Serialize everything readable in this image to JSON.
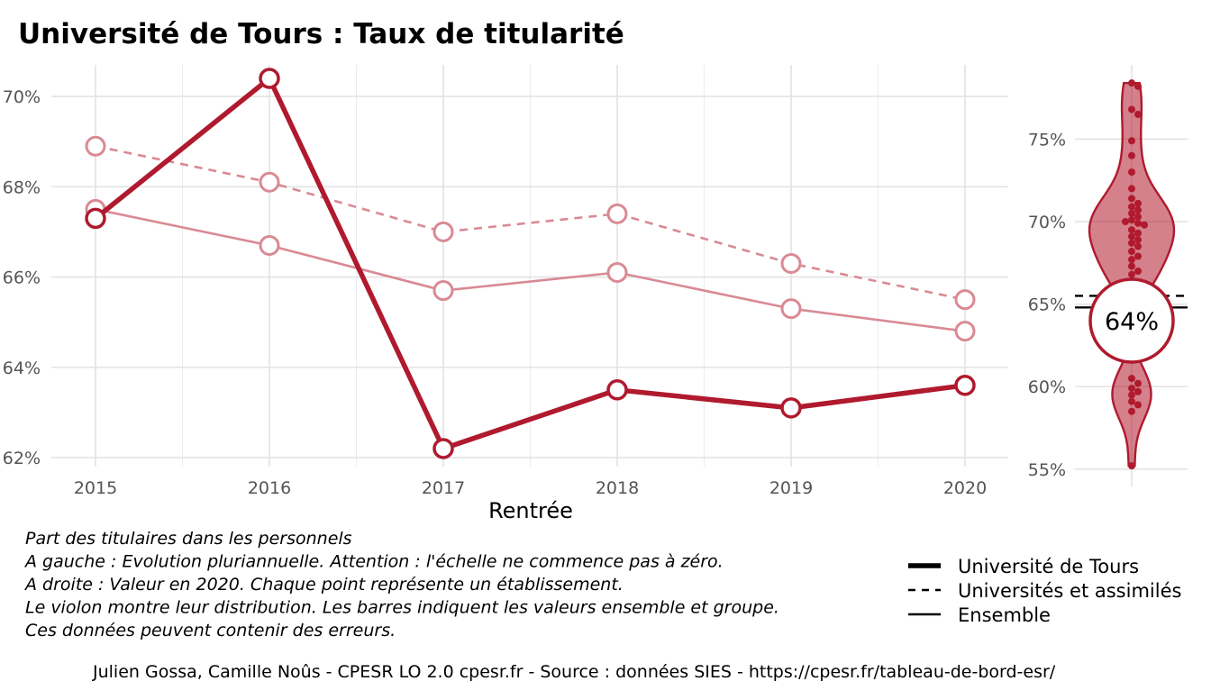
{
  "title": "Université de Tours  :  Taux de titularité",
  "chart_data": [
    {
      "type": "line",
      "xlabel": "Rentrée",
      "ylabel": "",
      "categories": [
        "2015",
        "2016",
        "2017",
        "2018",
        "2019",
        "2020"
      ],
      "ylim": [
        61.8,
        70.7
      ],
      "yticks": [
        "62%",
        "64%",
        "66%",
        "68%",
        "70%"
      ],
      "ytick_values": [
        62,
        64,
        66,
        68,
        70
      ],
      "grid": true,
      "series": [
        {
          "name": "Université de Tours",
          "style": "solid-thick",
          "color": "#b01a2e",
          "values": [
            67.3,
            70.4,
            62.2,
            63.5,
            63.1,
            63.6
          ]
        },
        {
          "name": "Universités et assimilés",
          "style": "dashed",
          "color": "#d98a94",
          "values": [
            68.9,
            68.1,
            67.0,
            67.4,
            66.3,
            65.5
          ]
        },
        {
          "name": "Ensemble",
          "style": "solid-thin",
          "color": "#d98a94",
          "values": [
            67.5,
            66.7,
            65.7,
            66.1,
            65.3,
            64.8
          ]
        }
      ]
    },
    {
      "type": "violin",
      "year": "2020",
      "ylim": [
        54.5,
        79.5
      ],
      "yticks": [
        "55%",
        "60%",
        "65%",
        "70%",
        "75%"
      ],
      "ytick_values": [
        55,
        60,
        65,
        70,
        75
      ],
      "highlight_value": 64,
      "highlight_label": "64%",
      "groupe_value": 65.5,
      "ensemble_value": 64.8,
      "points": [
        78.4,
        78.2,
        76.8,
        76.5,
        74.9,
        74.0,
        73.0,
        72.0,
        71.4,
        71.1,
        70.9,
        70.7,
        70.5,
        70.3,
        70.1,
        70.0,
        69.9,
        69.8,
        69.5,
        69.3,
        69.1,
        68.9,
        68.7,
        68.5,
        68.2,
        67.9,
        67.7,
        67.3,
        67.0,
        66.8,
        66.4,
        66.2,
        65.9,
        60.5,
        60.2,
        59.9,
        59.7,
        59.5,
        59.1,
        58.9,
        58.5,
        55.2
      ],
      "color": "#b01a2e"
    }
  ],
  "caption_lines": [
    "Part des titulaires dans les personnels",
    "A gauche : Evolution pluriannuelle. Attention : l'échelle ne commence pas à zéro.",
    "A droite : Valeur en 2020. Chaque point représente un établissement.",
    "Le violon montre leur distribution. Les barres indiquent les valeurs ensemble et groupe.",
    "Ces données peuvent contenir des erreurs."
  ],
  "legend": [
    {
      "label": "Université de Tours",
      "style": "solid-thick"
    },
    {
      "label": "Universités et assimilés",
      "style": "dashed"
    },
    {
      "label": "Ensemble",
      "style": "solid-thin"
    }
  ],
  "footer": "Julien Gossa, Camille Noûs - CPESR LO 2.0 cpesr.fr - Source : données SIES - https://cpesr.fr/tableau-de-bord-esr/"
}
